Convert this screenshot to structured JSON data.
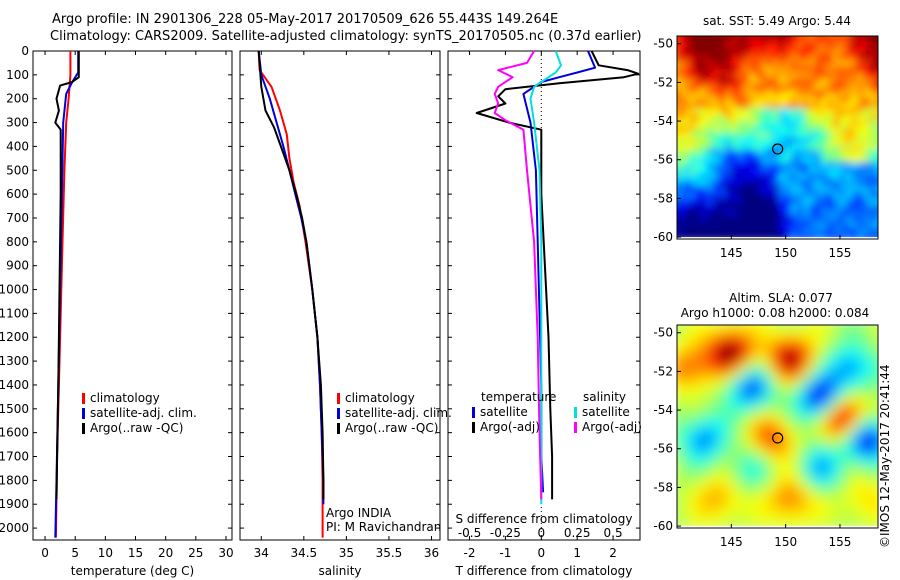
{
  "header": {
    "line1": "Argo profile: IN 2901306_228 05-May-2017 20170509_626 55.443S 149.264E",
    "line2": "Climatology: CARS2009. Satellite-adjusted climatology: synTS_20170505.nc (0.37d earlier)"
  },
  "stamp": "©IMOS 12-May-2017 20:41:44",
  "colors": {
    "climatology": "#ff0000",
    "satellite": "#0000dd",
    "argo": "#000000",
    "sal_sat": "#00e0e0",
    "sal_argo": "#ff00ff"
  },
  "chart_data": [
    {
      "type": "line",
      "id": "temperature",
      "xlabel": "temperature (deg C)",
      "ylabel": "",
      "xlim": [
        -2,
        31
      ],
      "ylim": [
        0,
        2050
      ],
      "xticks": [
        0,
        5,
        10,
        15,
        20,
        25,
        30
      ],
      "yticks": [
        0,
        100,
        200,
        300,
        400,
        500,
        600,
        700,
        800,
        900,
        1000,
        1100,
        1200,
        1300,
        1400,
        1500,
        1600,
        1700,
        1800,
        1900,
        2000
      ],
      "legend": [
        "climatology",
        "satellite-adj. clim.",
        "Argo(..raw -QC)"
      ],
      "series": [
        {
          "name": "climatology",
          "color": "#ff0000",
          "points": [
            [
              4.2,
              0
            ],
            [
              4.2,
              100
            ],
            [
              3.9,
              200
            ],
            [
              3.5,
              300
            ],
            [
              3.2,
              500
            ],
            [
              2.9,
              800
            ],
            [
              2.6,
              1100
            ],
            [
              2.3,
              1400
            ],
            [
              2.0,
              1700
            ],
            [
              1.8,
              2040
            ]
          ]
        },
        {
          "name": "satellite-adj. clim.",
          "color": "#0000dd",
          "points": [
            [
              5.5,
              0
            ],
            [
              5.5,
              90
            ],
            [
              4.5,
              130
            ],
            [
              3.5,
              180
            ],
            [
              3.0,
              300
            ],
            [
              2.8,
              600
            ],
            [
              2.5,
              1000
            ],
            [
              2.2,
              1400
            ],
            [
              1.9,
              1800
            ],
            [
              1.7,
              2040
            ]
          ]
        },
        {
          "name": "Argo(..raw -QC)",
          "color": "#000000",
          "points": [
            [
              5.6,
              0
            ],
            [
              5.6,
              110
            ],
            [
              4.5,
              130
            ],
            [
              2.5,
              145
            ],
            [
              1.9,
              200
            ],
            [
              2.3,
              250
            ],
            [
              1.7,
              300
            ],
            [
              2.6,
              330
            ],
            [
              2.6,
              600
            ],
            [
              2.4,
              1000
            ],
            [
              2.2,
              1400
            ],
            [
              2.0,
              1700
            ],
            [
              1.9,
              1880
            ]
          ]
        }
      ]
    },
    {
      "type": "line",
      "id": "salinity",
      "xlabel": "salinity",
      "ylabel": "",
      "xlim": [
        33.75,
        36.1
      ],
      "ylim": [
        0,
        2050
      ],
      "xticks": [
        34,
        34.5,
        35,
        35.5,
        36
      ],
      "legend": [
        "climatology",
        "satellite-adj. clim.",
        "Argo(..raw -QC)"
      ],
      "annotation": [
        "Argo INDIA",
        "PI: M Ravichandran"
      ],
      "series": [
        {
          "name": "climatology",
          "color": "#ff0000",
          "points": [
            [
              33.97,
              0
            ],
            [
              33.98,
              80
            ],
            [
              34.12,
              150
            ],
            [
              34.22,
              250
            ],
            [
              34.3,
              350
            ],
            [
              34.33,
              450
            ],
            [
              34.38,
              550
            ],
            [
              34.45,
              650
            ],
            [
              34.52,
              800
            ],
            [
              34.6,
              1000
            ],
            [
              34.66,
              1200
            ],
            [
              34.69,
              1400
            ],
            [
              34.71,
              1600
            ],
            [
              34.72,
              1800
            ],
            [
              34.72,
              2040
            ]
          ]
        },
        {
          "name": "satellite-adj. clim.",
          "color": "#0000dd",
          "points": [
            [
              33.97,
              0
            ],
            [
              34.0,
              100
            ],
            [
              34.1,
              200
            ],
            [
              34.18,
              300
            ],
            [
              34.26,
              400
            ],
            [
              34.33,
              500
            ],
            [
              34.4,
              600
            ],
            [
              34.47,
              700
            ],
            [
              34.53,
              800
            ],
            [
              34.6,
              1000
            ],
            [
              34.66,
              1200
            ],
            [
              34.69,
              1400
            ],
            [
              34.71,
              1600
            ],
            [
              34.73,
              1800
            ],
            [
              34.73,
              1900
            ]
          ]
        },
        {
          "name": "Argo(..raw -QC)",
          "color": "#000000",
          "points": [
            [
              33.97,
              0
            ],
            [
              34.0,
              150
            ],
            [
              34.05,
              250
            ],
            [
              34.15,
              320
            ],
            [
              34.23,
              400
            ],
            [
              34.33,
              500
            ],
            [
              34.41,
              600
            ],
            [
              34.48,
              700
            ],
            [
              34.53,
              800
            ],
            [
              34.6,
              1000
            ],
            [
              34.66,
              1200
            ],
            [
              34.7,
              1400
            ],
            [
              34.72,
              1600
            ],
            [
              34.73,
              1800
            ],
            [
              34.73,
              1880
            ]
          ]
        }
      ]
    },
    {
      "type": "line",
      "id": "difference",
      "xlabel": "T difference from climatology",
      "xlabel_top": "S difference from climatology",
      "xlim": [
        -2.6,
        2.75
      ],
      "ylim": [
        0,
        2050
      ],
      "xticks_T": [
        -2,
        -1,
        0,
        1,
        2
      ],
      "xticks_S_labels": [
        "-0.5",
        "-0.25",
        "0",
        "0.25",
        "0.5"
      ],
      "xticks_S_pos": [
        -2,
        -1,
        0,
        1,
        2
      ],
      "legend_temperature_title": "temperature",
      "legend_salinity_title": "salinity",
      "legend_temperature": [
        "satellite",
        "Argo(-adj)"
      ],
      "legend_salinity": [
        "satellite",
        "Argo(-adj)"
      ],
      "series": [
        {
          "name": "T satellite",
          "color": "#0000dd",
          "points": [
            [
              1.3,
              0
            ],
            [
              1.5,
              70
            ],
            [
              1.0,
              90
            ],
            [
              0.5,
              110
            ],
            [
              0.0,
              130
            ],
            [
              -0.5,
              180
            ],
            [
              -0.3,
              300
            ],
            [
              -0.15,
              500
            ],
            [
              -0.1,
              800
            ],
            [
              -0.05,
              1100
            ],
            [
              0.0,
              1400
            ],
            [
              0.0,
              1700
            ],
            [
              0.05,
              1850
            ]
          ]
        },
        {
          "name": "T Argo",
          "color": "#000000",
          "points": [
            [
              1.4,
              0
            ],
            [
              1.6,
              60
            ],
            [
              2.4,
              80
            ],
            [
              2.7,
              95
            ],
            [
              2.3,
              110
            ],
            [
              0.5,
              135
            ],
            [
              -1.0,
              160
            ],
            [
              -1.2,
              190
            ],
            [
              -1.0,
              220
            ],
            [
              -1.8,
              260
            ],
            [
              -0.9,
              300
            ],
            [
              0.0,
              330
            ],
            [
              0.0,
              600
            ],
            [
              0.1,
              900
            ],
            [
              0.2,
              1200
            ],
            [
              0.25,
              1500
            ],
            [
              0.3,
              1700
            ],
            [
              0.3,
              1880
            ]
          ]
        },
        {
          "name": "S satellite",
          "color": "#00e0e0",
          "points": [
            [
              0.4,
              0
            ],
            [
              0.55,
              60
            ],
            [
              0.4,
              90
            ],
            [
              0.1,
              120
            ],
            [
              -0.2,
              150
            ],
            [
              -0.3,
              200
            ],
            [
              -0.2,
              300
            ],
            [
              -0.05,
              500
            ],
            [
              0.0,
              800
            ],
            [
              0.0,
              1200
            ],
            [
              0.0,
              1600
            ],
            [
              0.0,
              1900
            ]
          ]
        },
        {
          "name": "S Argo",
          "color": "#ff00ff",
          "points": [
            [
              -0.2,
              0
            ],
            [
              -0.4,
              50
            ],
            [
              -1.2,
              80
            ],
            [
              -0.8,
              110
            ],
            [
              -1.2,
              150
            ],
            [
              -1.3,
              180
            ],
            [
              -1.2,
              220
            ],
            [
              -1.3,
              260
            ],
            [
              -1.0,
              290
            ],
            [
              -0.5,
              330
            ],
            [
              -0.4,
              500
            ],
            [
              -0.2,
              800
            ],
            [
              -0.1,
              1200
            ],
            [
              -0.05,
              1600
            ],
            [
              0.0,
              1880
            ]
          ]
        }
      ]
    },
    {
      "type": "heatmap",
      "id": "sst_map",
      "title": "sat. SST: 5.49 Argo: 5.44",
      "xlim": [
        140,
        158.5
      ],
      "ylim": [
        -60.1,
        -49.6
      ],
      "xticks": [
        145,
        150,
        155
      ],
      "yticks": [
        -50,
        -52,
        -54,
        -56,
        -58,
        -60
      ],
      "marker": [
        149.264,
        -55.443
      ]
    },
    {
      "type": "heatmap",
      "id": "sla_map",
      "title": "Altim. SLA: 0.077",
      "subtitle": "Argo h1000: 0.08 h2000: 0.084",
      "xlim": [
        140,
        158.5
      ],
      "ylim": [
        -60.1,
        -49.6
      ],
      "xticks": [
        145,
        150,
        155
      ],
      "yticks": [
        -50,
        -52,
        -54,
        -56,
        -58,
        -60
      ],
      "marker": [
        149.264,
        -55.443
      ]
    }
  ]
}
